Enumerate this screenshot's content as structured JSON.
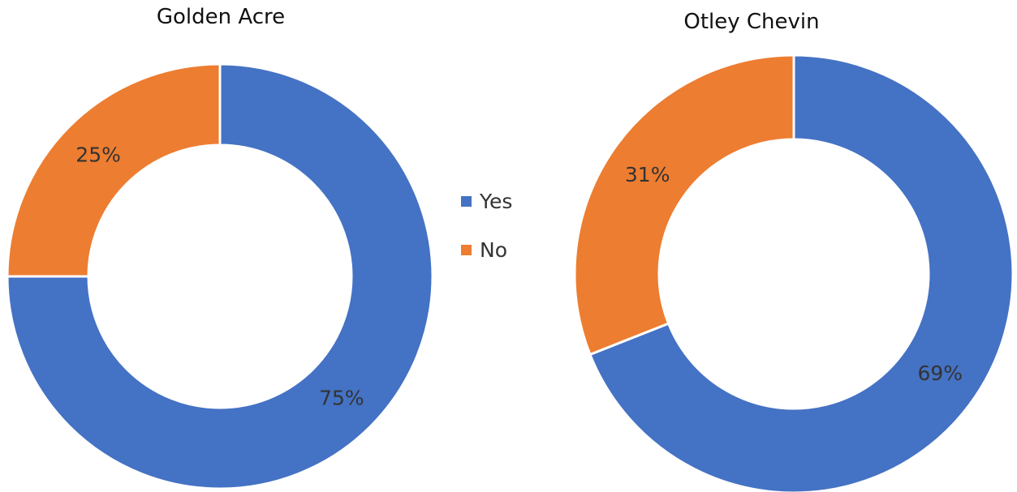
{
  "colors": {
    "yes": "#4472C4",
    "no": "#ED7D31",
    "separator": "#ffffff",
    "label": "#333333"
  },
  "chart_data": [
    {
      "type": "pie",
      "style": "donut",
      "title": "Golden Acre",
      "categories": [
        "Yes",
        "No"
      ],
      "values": [
        75,
        25
      ],
      "data_labels": [
        "75%",
        "25%"
      ]
    },
    {
      "type": "pie",
      "style": "donut",
      "title": "Otley Chevin",
      "categories": [
        "Yes",
        "No"
      ],
      "values": [
        69,
        31
      ],
      "data_labels": [
        "69%",
        "31%"
      ]
    }
  ],
  "legend": {
    "items": [
      {
        "label": "Yes",
        "color": "#4472C4"
      },
      {
        "label": "No",
        "color": "#ED7D31"
      }
    ]
  }
}
